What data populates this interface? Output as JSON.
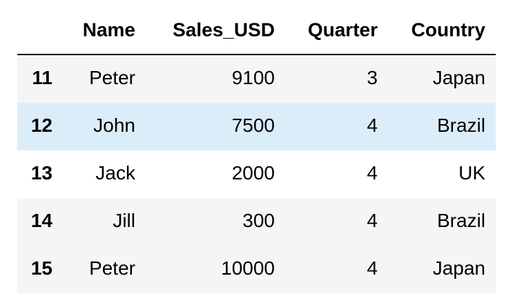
{
  "table": {
    "columns": [
      "Name",
      "Sales_USD",
      "Quarter",
      "Country"
    ],
    "rows": [
      {
        "index": 11,
        "cells": [
          "Peter",
          9100,
          3,
          "Japan"
        ]
      },
      {
        "index": 12,
        "cells": [
          "John",
          7500,
          4,
          "Brazil"
        ]
      },
      {
        "index": 13,
        "cells": [
          "Jack",
          2000,
          4,
          "UK"
        ]
      },
      {
        "index": 14,
        "cells": [
          "Jill",
          300,
          4,
          "Brazil"
        ]
      },
      {
        "index": 15,
        "cells": [
          "Peter",
          10000,
          4,
          "Japan"
        ]
      }
    ]
  }
}
